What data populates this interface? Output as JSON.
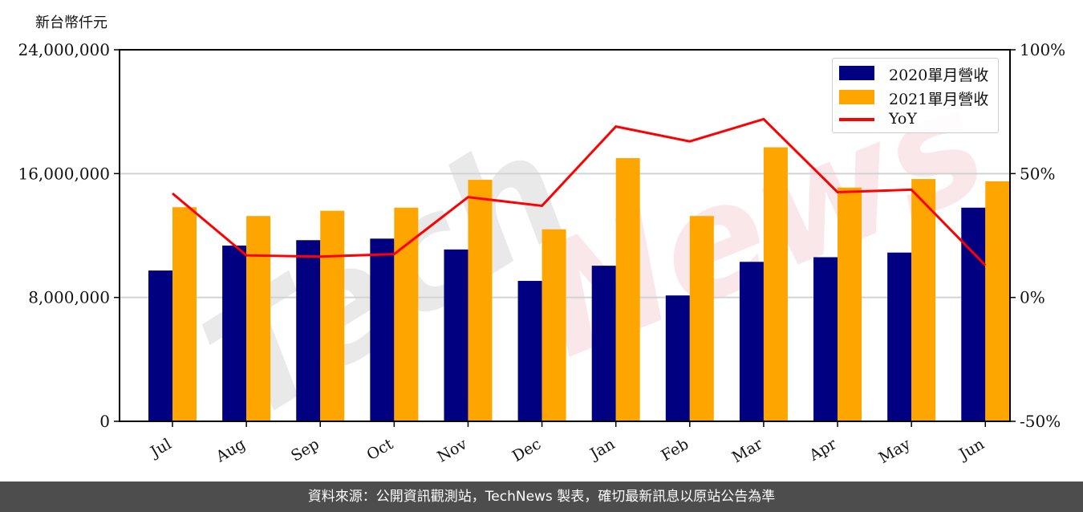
{
  "unit_label": "新台幣仟元",
  "footer_text": "資料來源：公開資訊觀測站，TechNews 製表，確切最新訊息以原站公告為準",
  "watermark": {
    "part1": "Tech",
    "part2": "News"
  },
  "colors": {
    "bar_2020": "#000080",
    "bar_2021": "#ffa500",
    "yoy_line": "#ff0000",
    "grid": "#d3d3d3",
    "footer_bg": "#4d4d4d"
  },
  "legend": {
    "items": [
      {
        "label": "2020單月營收",
        "type": "bar",
        "color": "#000080"
      },
      {
        "label": "2021單月營收",
        "type": "bar",
        "color": "#ffa500"
      },
      {
        "label": "YoY",
        "type": "line",
        "color": "#ff0000"
      }
    ]
  },
  "chart_data": {
    "type": "bar",
    "title": "",
    "xlabel": "",
    "ylabel": "新台幣仟元",
    "y2label": "",
    "categories": [
      "Jul",
      "Aug",
      "Sep",
      "Oct",
      "Nov",
      "Dec",
      "Jan",
      "Feb",
      "Mar",
      "Apr",
      "May",
      "Jun"
    ],
    "series": [
      {
        "name": "2020單月營收",
        "type": "bar",
        "axis": "left",
        "color": "#000080",
        "values": [
          9740000,
          11350000,
          11700000,
          11800000,
          11100000,
          9070000,
          10050000,
          8130000,
          10300000,
          10600000,
          10900000,
          13800000
        ]
      },
      {
        "name": "2021單月營收",
        "type": "bar",
        "axis": "left",
        "color": "#ffa500",
        "values": [
          13830000,
          13260000,
          13600000,
          13800000,
          15600000,
          12400000,
          17000000,
          13260000,
          17700000,
          15100000,
          15650000,
          15500000
        ]
      },
      {
        "name": "YoY",
        "type": "line",
        "axis": "right",
        "color": "#ff0000",
        "values": [
          42.0,
          17.0,
          16.5,
          17.5,
          40.5,
          37.0,
          69.0,
          63.0,
          72.0,
          42.5,
          43.5,
          13.0
        ]
      }
    ],
    "ylim": [
      0,
      24000000
    ],
    "y_ticks": [
      0,
      8000000,
      16000000,
      24000000
    ],
    "y_tick_labels": [
      "0",
      "8,000,000",
      "16,000,000",
      "24,000,000"
    ],
    "y2lim": [
      -50,
      100
    ],
    "y2_ticks": [
      -50,
      0,
      50,
      100
    ],
    "y2_tick_labels": [
      "-50%",
      "0%",
      "50%",
      "100%"
    ],
    "grid": true,
    "legend_position": "upper right"
  }
}
